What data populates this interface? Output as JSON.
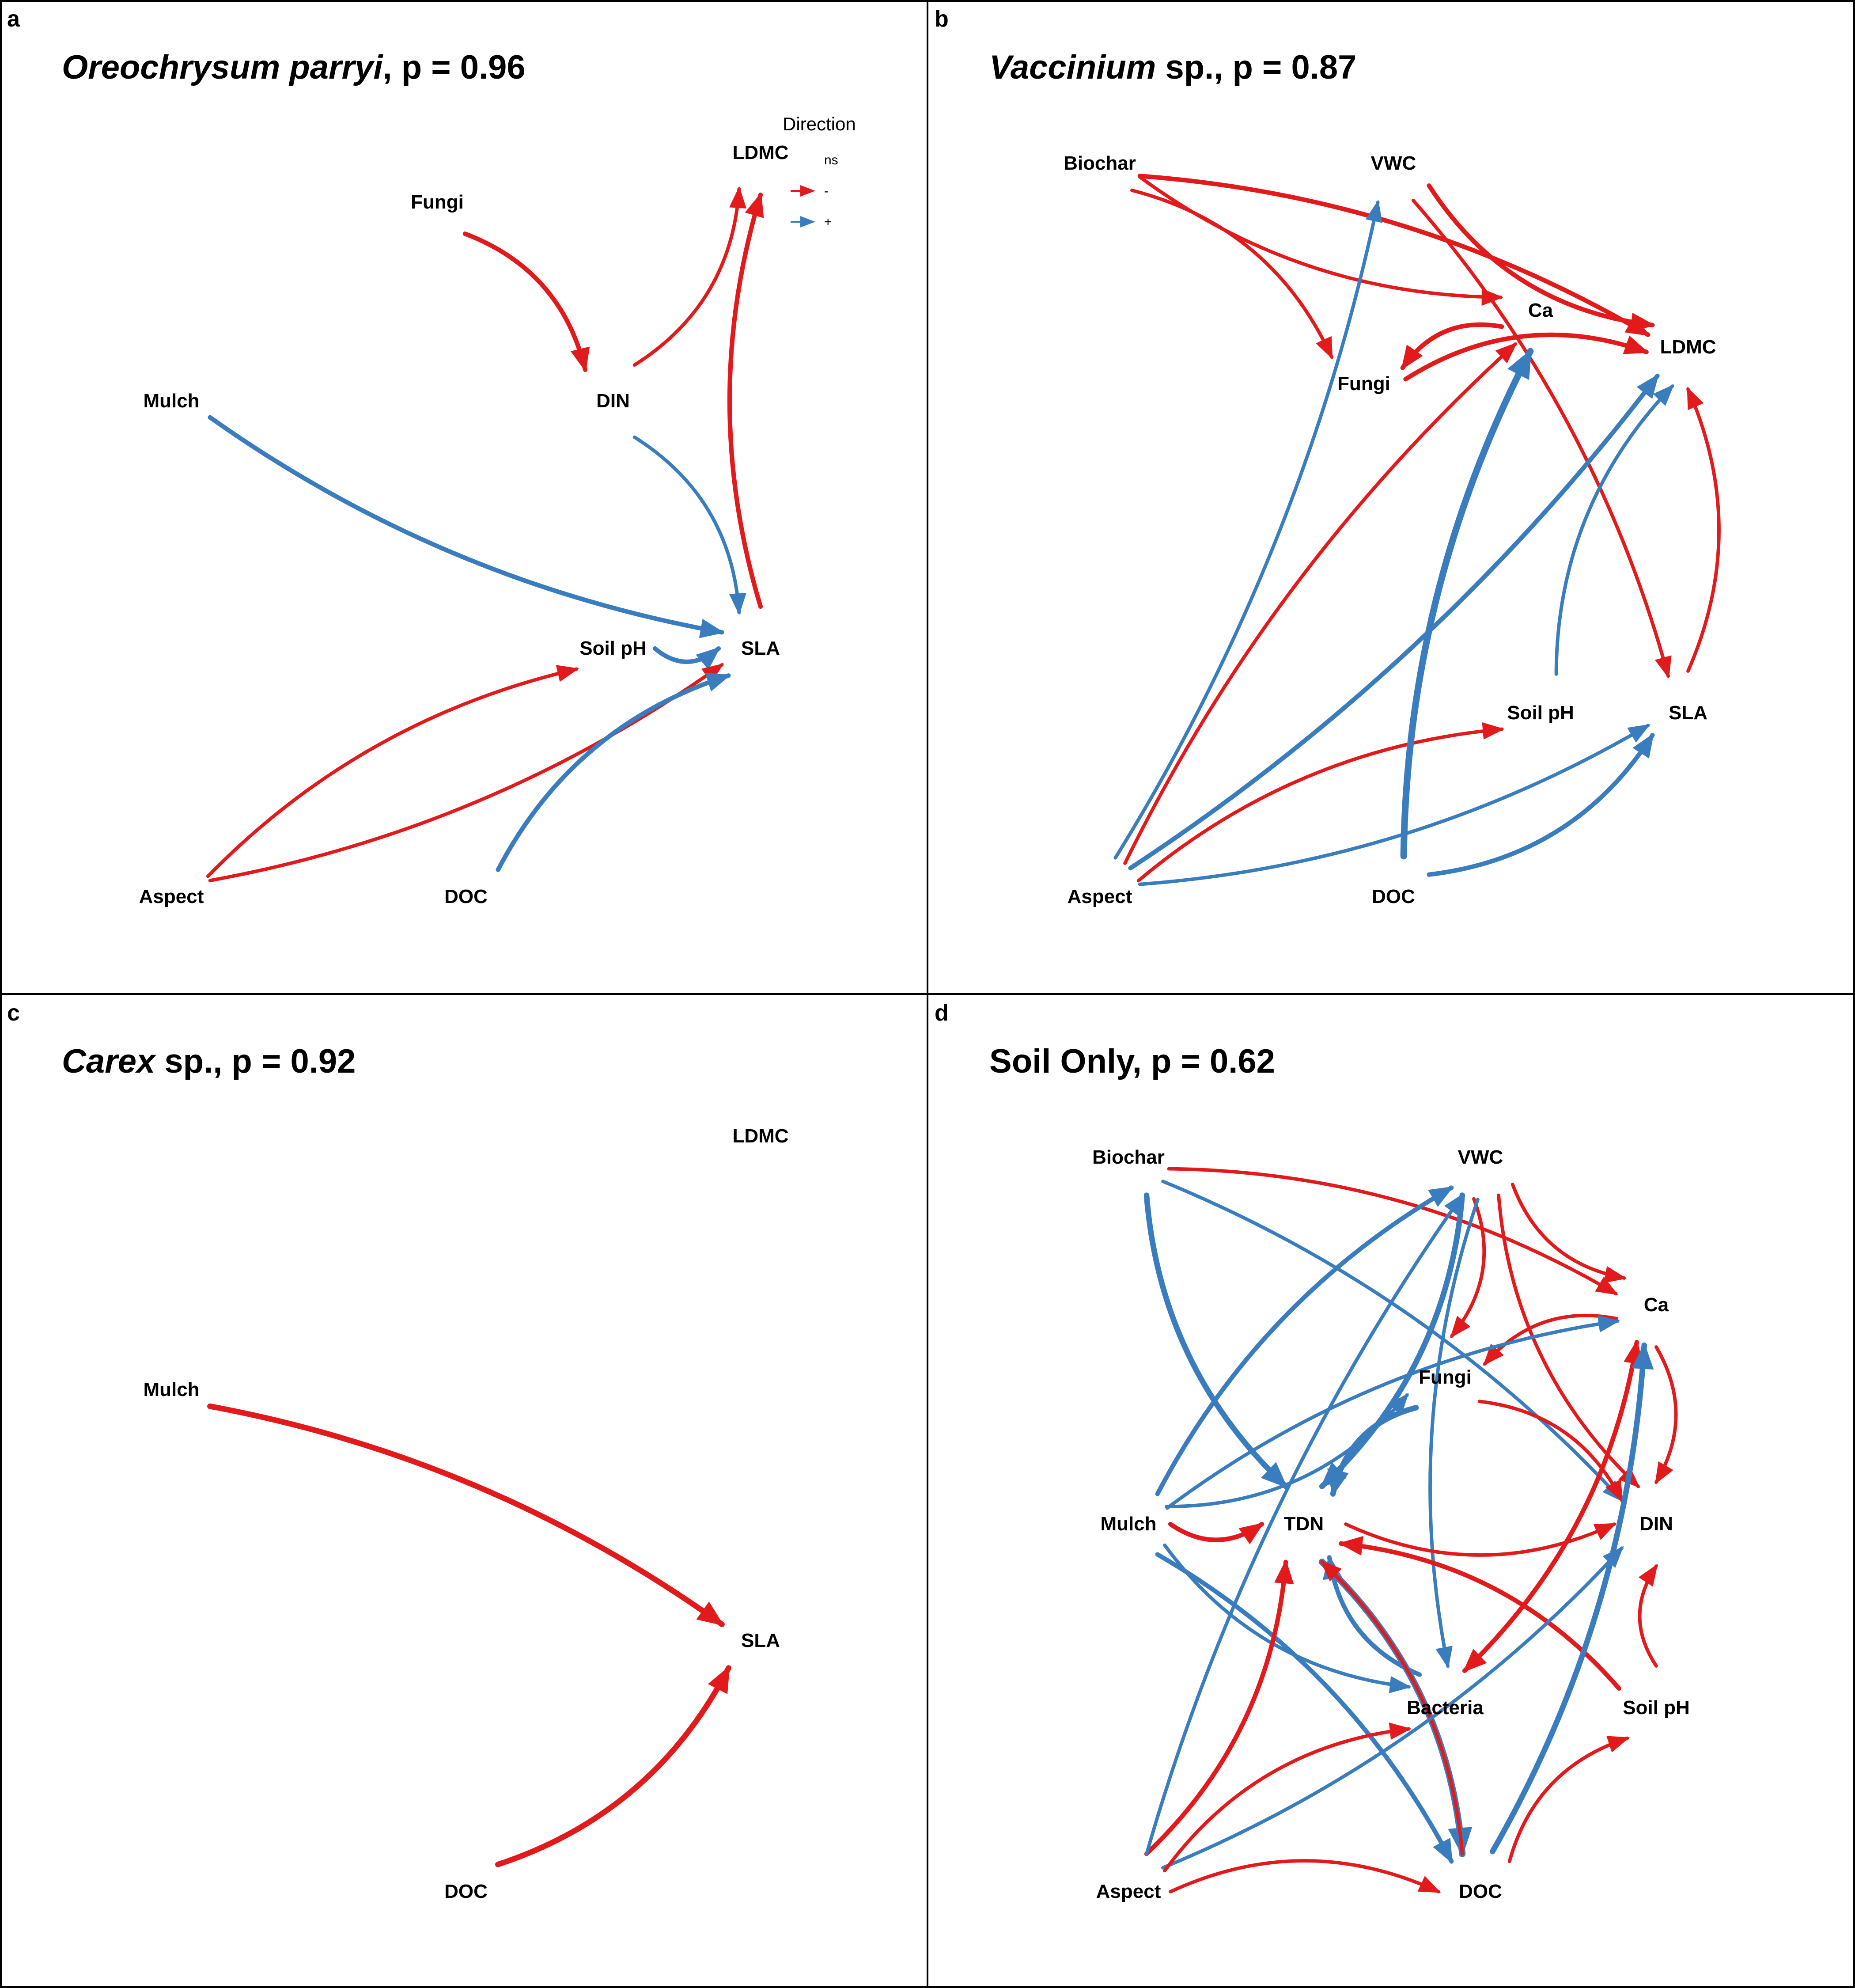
{
  "colors": {
    "negative": "#e31a1c",
    "positive": "#3a7dbf",
    "border": "#000000"
  },
  "legend": {
    "title": "Direction",
    "items": [
      {
        "label": "ns",
        "color": "none"
      },
      {
        "label": "-",
        "color": "#e31a1c"
      },
      {
        "label": "+",
        "color": "#3a7dbf"
      }
    ]
  },
  "panels": [
    {
      "id": "a",
      "label": "a",
      "title_italic": "Oreochrysum parryi",
      "title_rest": ", p = 0.96",
      "nodes": [
        "LDMC",
        "Fungi",
        "DIN",
        "Mulch",
        "Soil pH",
        "SLA",
        "Aspect",
        "DOC"
      ],
      "paths": [
        {
          "from": "Fungi",
          "to": "DIN",
          "sign": "-",
          "weight": 3
        },
        {
          "from": "DIN",
          "to": "LDMC",
          "sign": "-",
          "weight": 2
        },
        {
          "from": "SLA",
          "to": "LDMC",
          "sign": "-",
          "weight": 3
        },
        {
          "from": "Mulch",
          "to": "SLA",
          "sign": "+",
          "weight": 3
        },
        {
          "from": "DIN",
          "to": "SLA",
          "sign": "+",
          "weight": 2
        },
        {
          "from": "Soil pH",
          "to": "SLA",
          "sign": "+",
          "weight": 3
        },
        {
          "from": "Aspect",
          "to": "Soil pH",
          "sign": "-",
          "weight": 2
        },
        {
          "from": "Aspect",
          "to": "SLA",
          "sign": "-",
          "weight": 2
        },
        {
          "from": "DOC",
          "to": "SLA",
          "sign": "+",
          "weight": 3
        }
      ]
    },
    {
      "id": "b",
      "label": "b",
      "title_italic": "Vaccinium",
      "title_rest": " sp., p = 0.87",
      "nodes": [
        "Biochar",
        "VWC",
        "Ca",
        "LDMC",
        "Fungi",
        "Soil pH",
        "SLA",
        "Aspect",
        "DOC"
      ],
      "paths": [
        {
          "from": "Biochar",
          "to": "Fungi",
          "sign": "-",
          "weight": 2
        },
        {
          "from": "Biochar",
          "to": "Ca",
          "sign": "-",
          "weight": 2
        },
        {
          "from": "Biochar",
          "to": "LDMC",
          "sign": "-",
          "weight": 3
        },
        {
          "from": "VWC",
          "to": "LDMC",
          "sign": "-",
          "weight": 3
        },
        {
          "from": "VWC",
          "to": "SLA",
          "sign": "-",
          "weight": 2
        },
        {
          "from": "Ca",
          "to": "Fungi",
          "sign": "-",
          "weight": 3
        },
        {
          "from": "Fungi",
          "to": "LDMC",
          "sign": "-",
          "weight": 3
        },
        {
          "from": "SLA",
          "to": "LDMC",
          "sign": "-",
          "weight": 2
        },
        {
          "from": "Soil pH",
          "to": "LDMC",
          "sign": "+",
          "weight": 2
        },
        {
          "from": "Aspect",
          "to": "VWC",
          "sign": "+",
          "weight": 2
        },
        {
          "from": "Aspect",
          "to": "Ca",
          "sign": "-",
          "weight": 2
        },
        {
          "from": "Aspect",
          "to": "LDMC",
          "sign": "+",
          "weight": 3
        },
        {
          "from": "Aspect",
          "to": "Soil pH",
          "sign": "-",
          "weight": 2
        },
        {
          "from": "Aspect",
          "to": "SLA",
          "sign": "+",
          "weight": 2
        },
        {
          "from": "DOC",
          "to": "Ca",
          "sign": "+",
          "weight": 5
        },
        {
          "from": "DOC",
          "to": "SLA",
          "sign": "+",
          "weight": 3
        }
      ]
    },
    {
      "id": "c",
      "label": "c",
      "title_italic": "Carex",
      "title_rest": " sp., p = 0.92",
      "nodes": [
        "LDMC",
        "Mulch",
        "SLA",
        "DOC"
      ],
      "paths": [
        {
          "from": "Mulch",
          "to": "SLA",
          "sign": "-",
          "weight": 4
        },
        {
          "from": "DOC",
          "to": "SLA",
          "sign": "-",
          "weight": 4
        }
      ]
    },
    {
      "id": "d",
      "label": "d",
      "title_italic": "",
      "title_rest": "Soil Only, p = 0.62",
      "nodes": [
        "Biochar",
        "VWC",
        "Ca",
        "Fungi",
        "Mulch",
        "TDN",
        "DIN",
        "Bacteria",
        "Soil pH",
        "Aspect",
        "DOC"
      ],
      "paths": [
        {
          "from": "Biochar",
          "to": "Ca",
          "sign": "-",
          "weight": 2
        },
        {
          "from": "Biochar",
          "to": "TDN",
          "sign": "+",
          "weight": 4
        },
        {
          "from": "Biochar",
          "to": "DIN",
          "sign": "+",
          "weight": 2
        },
        {
          "from": "VWC",
          "to": "Ca",
          "sign": "-",
          "weight": 2
        },
        {
          "from": "VWC",
          "to": "Fungi",
          "sign": "-",
          "weight": 2
        },
        {
          "from": "VWC",
          "to": "DIN",
          "sign": "-",
          "weight": 2
        },
        {
          "from": "VWC",
          "to": "TDN",
          "sign": "+",
          "weight": 4
        },
        {
          "from": "VWC",
          "to": "Bacteria",
          "sign": "+",
          "weight": 2
        },
        {
          "from": "Ca",
          "to": "DIN",
          "sign": "-",
          "weight": 2
        },
        {
          "from": "Ca",
          "to": "Fungi",
          "sign": "-",
          "weight": 2
        },
        {
          "from": "Ca",
          "to": "Bacteria",
          "sign": "-",
          "weight": 3
        },
        {
          "from": "Fungi",
          "to": "TDN",
          "sign": "+",
          "weight": 4
        },
        {
          "from": "Fungi",
          "to": "DIN",
          "sign": "-",
          "weight": 2
        },
        {
          "from": "Mulch",
          "to": "TDN",
          "sign": "-",
          "weight": 3
        },
        {
          "from": "Mulch",
          "to": "VWC",
          "sign": "+",
          "weight": 3
        },
        {
          "from": "Mulch",
          "to": "Fungi",
          "sign": "+",
          "weight": 2
        },
        {
          "from": "Mulch",
          "to": "Ca",
          "sign": "+",
          "weight": 2
        },
        {
          "from": "Mulch",
          "to": "Bacteria",
          "sign": "+",
          "weight": 2
        },
        {
          "from": "Mulch",
          "to": "DOC",
          "sign": "+",
          "weight": 3
        },
        {
          "from": "TDN",
          "to": "DIN",
          "sign": "-",
          "weight": 2
        },
        {
          "from": "TDN",
          "to": "DOC",
          "sign": "+",
          "weight": 5
        },
        {
          "from": "Bacteria",
          "to": "Ca",
          "sign": "-",
          "weight": 3
        },
        {
          "from": "Bacteria",
          "to": "TDN",
          "sign": "+",
          "weight": 3
        },
        {
          "from": "Soil pH",
          "to": "TDN",
          "sign": "-",
          "weight": 3
        },
        {
          "from": "Soil pH",
          "to": "DIN",
          "sign": "-",
          "weight": 2
        },
        {
          "from": "DOC",
          "to": "Ca",
          "sign": "+",
          "weight": 4
        },
        {
          "from": "DOC",
          "to": "Soil pH",
          "sign": "-",
          "weight": 2
        },
        {
          "from": "DOC",
          "to": "TDN",
          "sign": "-",
          "weight": 2
        },
        {
          "from": "Aspect",
          "to": "DOC",
          "sign": "-",
          "weight": 2
        },
        {
          "from": "Aspect",
          "to": "TDN",
          "sign": "-",
          "weight": 3
        },
        {
          "from": "Aspect",
          "to": "VWC",
          "sign": "+",
          "weight": 2
        },
        {
          "from": "Aspect",
          "to": "DIN",
          "sign": "+",
          "weight": 2
        },
        {
          "from": "Aspect",
          "to": "Bacteria",
          "sign": "-",
          "weight": 2
        }
      ]
    }
  ]
}
